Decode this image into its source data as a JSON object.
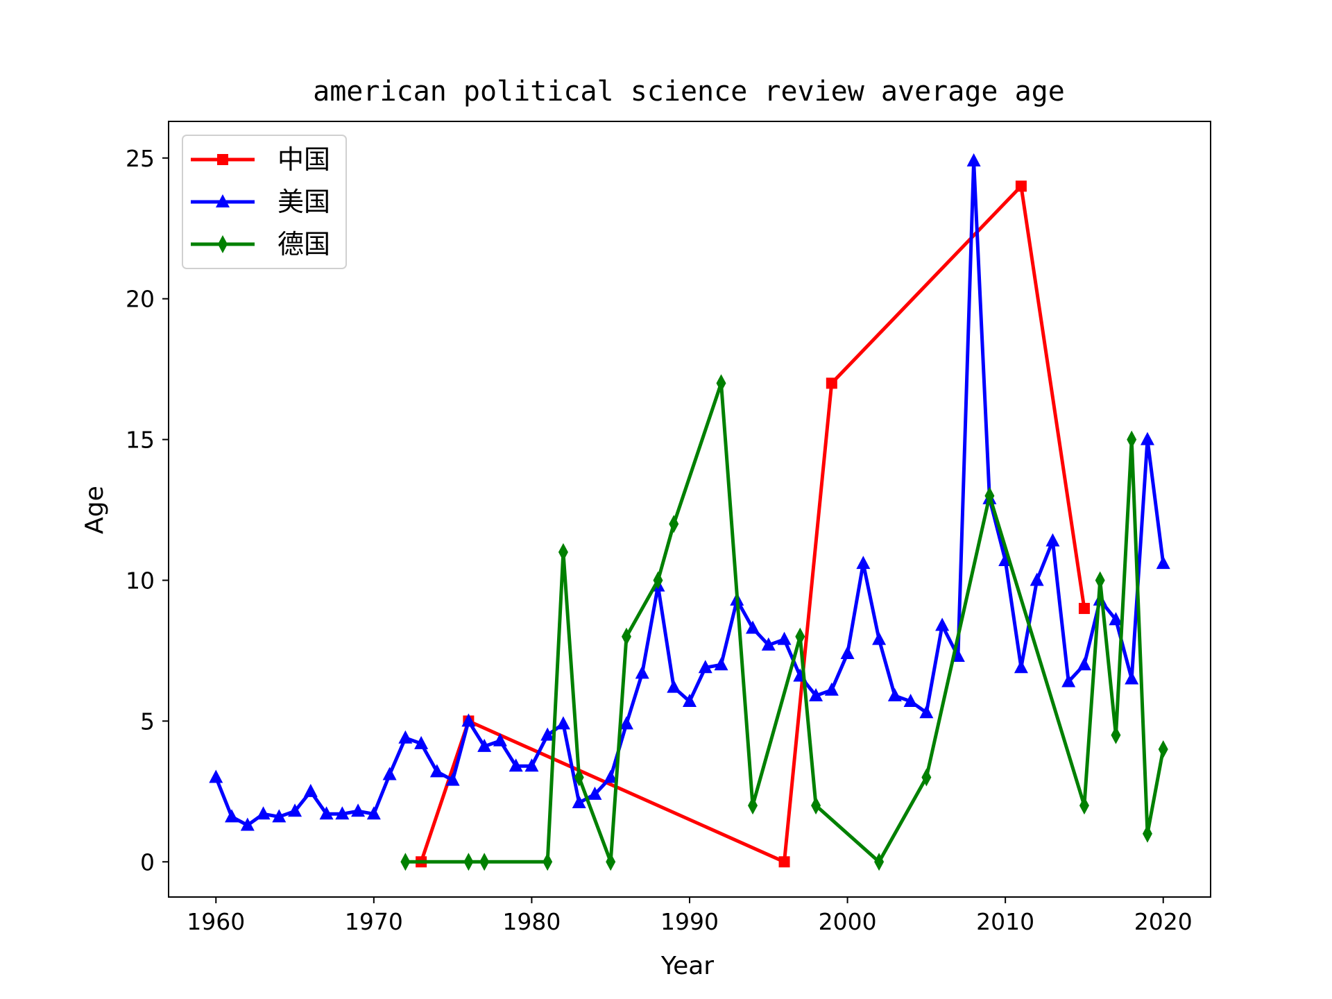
{
  "chart_data": {
    "type": "line",
    "title": "american political science review average age",
    "xlabel": "Year",
    "ylabel": "Age",
    "xlim": [
      1957,
      2023
    ],
    "ylim": [
      -1.25,
      26.3
    ],
    "x_ticks": [
      1960,
      1970,
      1980,
      1990,
      2000,
      2010,
      2020
    ],
    "y_ticks": [
      0,
      5,
      10,
      15,
      20,
      25
    ],
    "grid": false,
    "legend_position": "upper-left",
    "series": [
      {
        "name": "中国",
        "color": "#ff0000",
        "marker": "square",
        "x": [
          1973,
          1976,
          1996,
          1999,
          2011,
          2015
        ],
        "y": [
          0,
          5,
          0,
          17,
          24,
          9
        ]
      },
      {
        "name": "美国",
        "color": "#0000ff",
        "marker": "triangle",
        "x": [
          1960,
          1961,
          1962,
          1963,
          1964,
          1965,
          1966,
          1967,
          1968,
          1969,
          1970,
          1971,
          1972,
          1973,
          1974,
          1975,
          1976,
          1977,
          1978,
          1979,
          1980,
          1981,
          1982,
          1983,
          1984,
          1985,
          1986,
          1987,
          1988,
          1989,
          1990,
          1991,
          1992,
          1993,
          1994,
          1995,
          1996,
          1997,
          1998,
          1999,
          2000,
          2001,
          2002,
          2003,
          2004,
          2005,
          2006,
          2007,
          2008,
          2009,
          2010,
          2011,
          2012,
          2013,
          2014,
          2015,
          2016,
          2017,
          2018,
          2019,
          2020
        ],
        "y": [
          3.0,
          1.6,
          1.3,
          1.7,
          1.6,
          1.8,
          2.5,
          1.7,
          1.7,
          1.8,
          1.7,
          3.1,
          4.4,
          4.2,
          3.2,
          2.9,
          5.0,
          4.1,
          4.3,
          3.4,
          3.4,
          4.5,
          4.9,
          2.1,
          2.4,
          3.0,
          4.9,
          6.7,
          9.8,
          6.2,
          5.7,
          6.9,
          7.0,
          9.3,
          8.3,
          7.7,
          7.9,
          6.6,
          5.9,
          6.1,
          7.4,
          10.6,
          7.9,
          5.9,
          5.7,
          5.3,
          8.4,
          7.3,
          24.9,
          12.9,
          10.7,
          6.9,
          10.0,
          11.4,
          6.4,
          7.0,
          9.3,
          8.6,
          6.5,
          15.0,
          10.6
        ]
      },
      {
        "name": "德国",
        "color": "#008000",
        "marker": "thin-diamond",
        "x": [
          1972,
          1976,
          1977,
          1981,
          1982,
          1983,
          1985,
          1986,
          1988,
          1989,
          1992,
          1994,
          1997,
          1998,
          2002,
          2005,
          2009,
          2015,
          2016,
          2017,
          2018,
          2019,
          2020
        ],
        "y": [
          0,
          0,
          0,
          0,
          11,
          3,
          0,
          8,
          10,
          12,
          17,
          2,
          8,
          2,
          0,
          3,
          13,
          2,
          10,
          4.5,
          15,
          1,
          4
        ]
      }
    ]
  }
}
